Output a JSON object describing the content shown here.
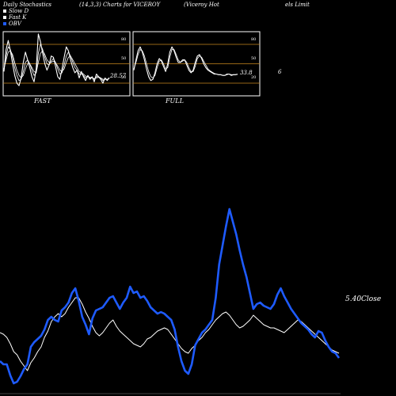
{
  "header": {
    "title_left": "Daily Stochastics",
    "title_mid": "(14,3,3) Charts for VICEROY",
    "title_right_a": "(Viceroy Hot",
    "title_right_b": "els Limit"
  },
  "legend": [
    {
      "label": "Slow D",
      "color": "#ffffff"
    },
    {
      "label": "Fast K",
      "color": "#ffffff"
    },
    {
      "label": "OBV",
      "color": "#1e5bff"
    }
  ],
  "colors": {
    "background": "#000000",
    "panel_border": "#ffffff",
    "level_line": "#c8891e",
    "stoch_line": "#ffffff",
    "obv_line": "#1e5bff",
    "price_line": "#ffffff"
  },
  "chart_data": [
    {
      "type": "line",
      "label": "FAST",
      "ylim": [
        0,
        100
      ],
      "levels": [
        20,
        50,
        80
      ],
      "ticks": [
        "80",
        "50",
        "20"
      ],
      "last_value_text": "28.57",
      "series": [
        {
          "values": [
            38,
            72,
            86,
            70,
            50,
            32,
            20,
            16,
            28,
            52,
            68,
            56,
            44,
            30,
            22,
            42,
            96,
            84,
            66,
            50,
            40,
            48,
            62,
            60,
            46,
            30,
            26,
            42,
            60,
            76,
            70,
            56,
            44,
            36,
            40,
            28,
            38,
            30,
            24,
            32,
            26,
            30,
            22,
            34,
            30,
            26,
            20,
            28,
            24,
            28.57
          ]
        },
        {
          "values": [
            40,
            62,
            76,
            72,
            60,
            44,
            32,
            24,
            26,
            38,
            52,
            56,
            50,
            40,
            32,
            36,
            66,
            80,
            72,
            60,
            50,
            48,
            54,
            58,
            52,
            42,
            34,
            36,
            48,
            62,
            68,
            62,
            52,
            44,
            40,
            34,
            34,
            32,
            28,
            30,
            28,
            28,
            26,
            30,
            30,
            28,
            24,
            26,
            26,
            27
          ]
        },
        {
          "values": [
            42,
            56,
            68,
            70,
            64,
            52,
            40,
            32,
            28,
            32,
            42,
            50,
            50,
            44,
            38,
            36,
            52,
            66,
            70,
            64,
            56,
            52,
            52,
            54,
            52,
            46,
            40,
            38,
            42,
            52,
            60,
            62,
            56,
            50,
            44,
            38,
            36,
            34,
            31,
            30,
            29,
            28,
            27,
            28,
            29,
            28,
            26,
            26,
            26,
            27
          ]
        }
      ]
    },
    {
      "type": "line",
      "label": "FULL",
      "ylim": [
        0,
        100
      ],
      "levels": [
        20,
        50,
        80
      ],
      "ticks": [
        "80",
        "50",
        "20"
      ],
      "last_value_text": "33.8",
      "series": [
        {
          "values": [
            40,
            56,
            70,
            76,
            68,
            56,
            42,
            30,
            24,
            26,
            36,
            50,
            58,
            54,
            46,
            38,
            50,
            68,
            76,
            70,
            60,
            52,
            52,
            56,
            56,
            48,
            40,
            36,
            40,
            52,
            62,
            64,
            58,
            50,
            44,
            40,
            38,
            36,
            34,
            34,
            33,
            33,
            32,
            32,
            34,
            34,
            32,
            33,
            33,
            33.8
          ]
        },
        {
          "values": [
            42,
            52,
            64,
            72,
            70,
            62,
            50,
            38,
            30,
            28,
            32,
            44,
            54,
            56,
            50,
            42,
            44,
            60,
            72,
            72,
            64,
            56,
            52,
            54,
            56,
            52,
            44,
            38,
            38,
            46,
            58,
            62,
            60,
            54,
            48,
            42,
            39,
            37,
            35,
            34,
            33,
            33,
            32,
            32,
            33,
            34,
            33,
            33,
            33,
            33.5
          ]
        }
      ]
    },
    {
      "type": "line",
      "label": "OBV & Price",
      "close_label": "5.40",
      "close_suffix": "Close",
      "series": [
        {
          "name": "OBV",
          "values": [
            44,
            40,
            40,
            26,
            16,
            18,
            25,
            34,
            40,
            62,
            68,
            72,
            76,
            84,
            96,
            100,
            96,
            94,
            108,
            112,
            118,
            130,
            136,
            120,
            100,
            90,
            78,
            98,
            108,
            110,
            112,
            118,
            124,
            126,
            118,
            110,
            118,
            124,
            138,
            130,
            132,
            124,
            126,
            120,
            112,
            108,
            104,
            106,
            104,
            100,
            96,
            84,
            62,
            44,
            32,
            28,
            40,
            64,
            72,
            80,
            84,
            90,
            96,
            124,
            166,
            190,
            214,
            236,
            220,
            204,
            184,
            166,
            150,
            130,
            110,
            116,
            118,
            114,
            112,
            110,
            116,
            128,
            136,
            126,
            118,
            110,
            104,
            98,
            92,
            88,
            84,
            78,
            74,
            82,
            80,
            70,
            62,
            56,
            54,
            48
          ]
        },
        {
          "name": "Price",
          "values": [
            80,
            78,
            74,
            66,
            56,
            52,
            44,
            38,
            32,
            42,
            48,
            56,
            62,
            74,
            82,
            94,
            100,
            104,
            100,
            104,
            112,
            118,
            124,
            124,
            116,
            106,
            98,
            88,
            80,
            76,
            80,
            86,
            92,
            96,
            88,
            82,
            78,
            74,
            70,
            66,
            64,
            62,
            66,
            72,
            74,
            78,
            82,
            84,
            86,
            84,
            78,
            72,
            66,
            60,
            56,
            54,
            60,
            64,
            70,
            74,
            80,
            84,
            90,
            96,
            100,
            104,
            106,
            102,
            96,
            90,
            86,
            88,
            92,
            96,
            102,
            98,
            94,
            90,
            88,
            86,
            86,
            84,
            82,
            80,
            84,
            88,
            92,
            96,
            94,
            90,
            86,
            82,
            78,
            74,
            70,
            66,
            62,
            58,
            56,
            54
          ]
        }
      ]
    }
  ]
}
